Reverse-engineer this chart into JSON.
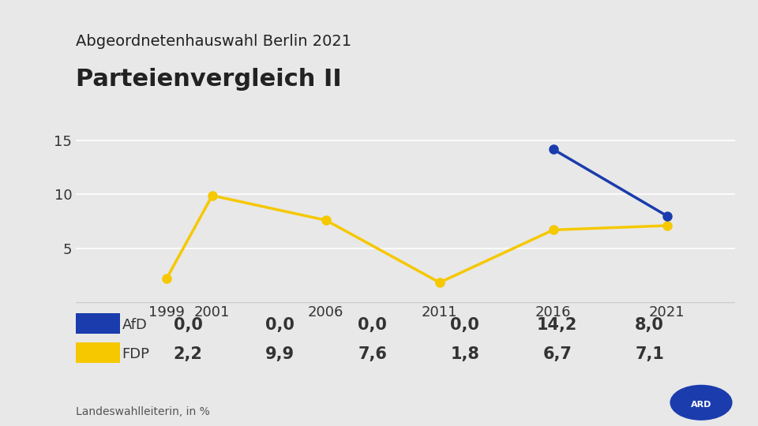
{
  "title_top": "Abgeordnetenhauswahl Berlin 2021",
  "title_main": "Parteienvergleich II",
  "source": "Landeswahlleiterin, in %",
  "years": [
    1999,
    2001,
    2006,
    2011,
    2016,
    2021
  ],
  "afd": [
    0.0,
    0.0,
    0.0,
    0.0,
    14.2,
    8.0
  ],
  "fdp": [
    2.2,
    9.9,
    7.6,
    1.8,
    6.7,
    7.1
  ],
  "afd_color": "#1a3cad",
  "fdp_color": "#f5c800",
  "background_color": "#e8e8e8",
  "plot_bg_color": "#e8e8e8",
  "table_bg_color": "#e8e8e8",
  "yticks": [
    5,
    10,
    15
  ],
  "ylim": [
    0,
    17
  ],
  "line_width": 2.5,
  "marker_size": 8,
  "afd_label_values": [
    "0,0",
    "0,0",
    "0,0",
    "0,0",
    "14,2",
    "8,0"
  ],
  "fdp_label_values": [
    "2,2",
    "9,9",
    "7,6",
    "1,8",
    "6,7",
    "7,1"
  ]
}
